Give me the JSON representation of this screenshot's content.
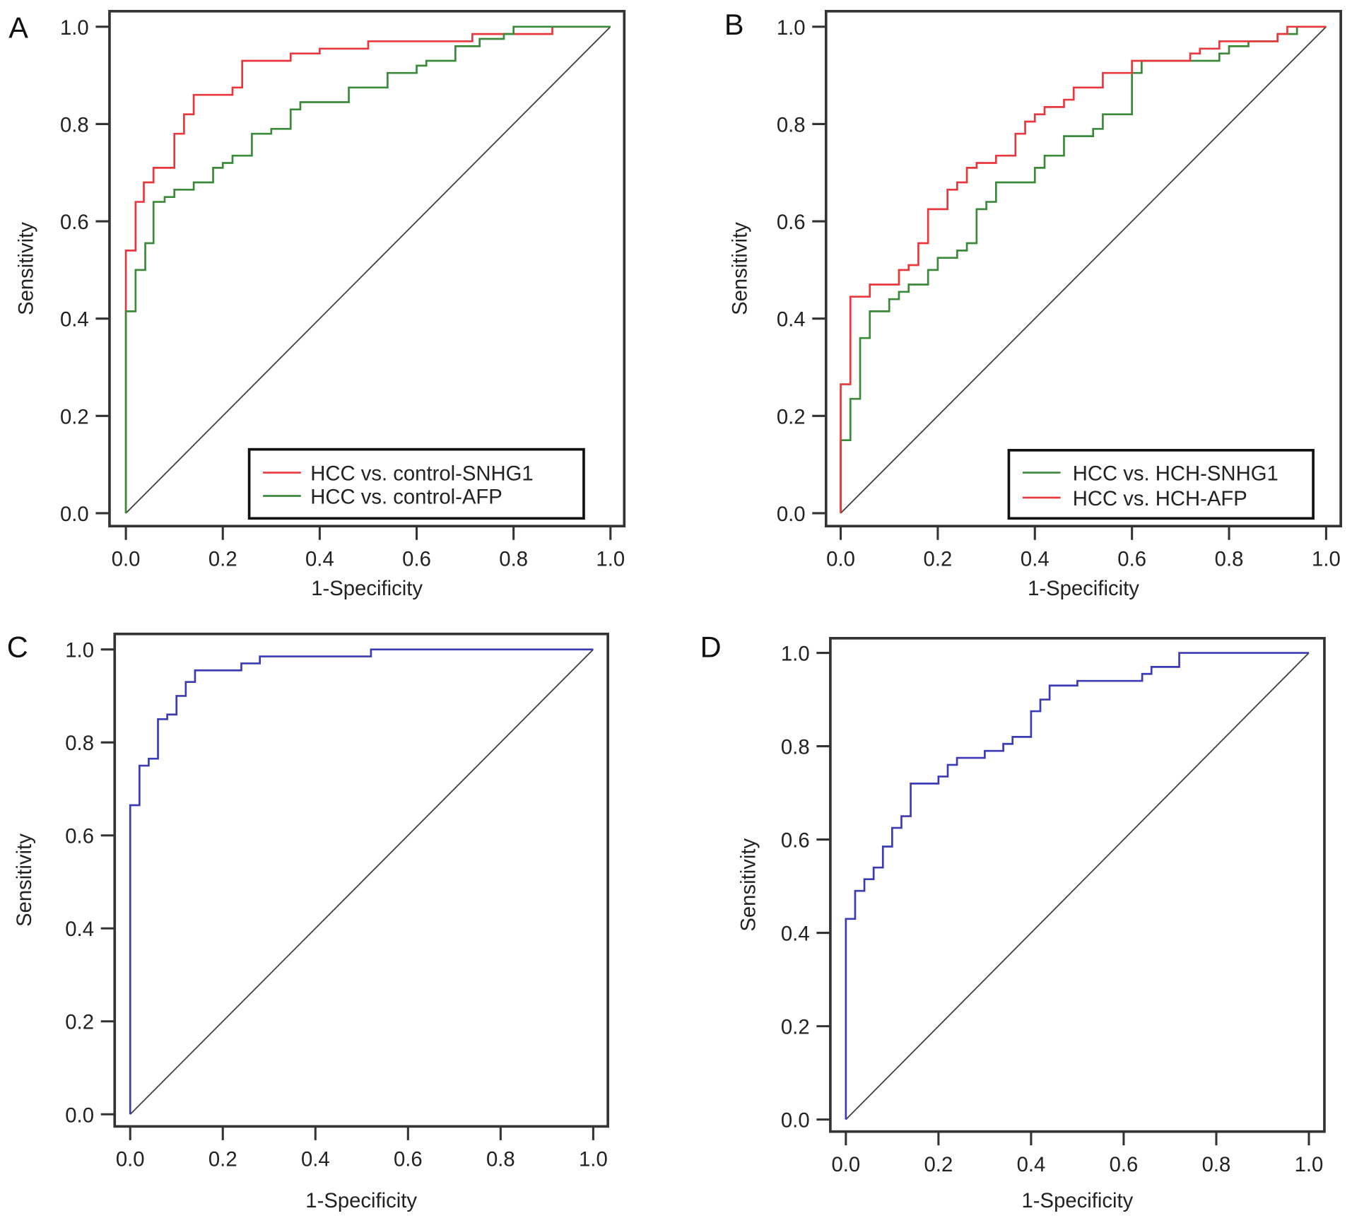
{
  "chart_data": [
    {
      "panel": "A",
      "type": "line",
      "xlabel": "1-Specificity",
      "ylabel": "Sensitivity",
      "xlim": [
        0,
        1
      ],
      "ylim": [
        0,
        1
      ],
      "xticks": [
        "0.0",
        "0.2",
        "0.4",
        "0.6",
        "0.8",
        "1.0"
      ],
      "yticks": [
        "0.0",
        "0.2",
        "0.4",
        "0.6",
        "0.8",
        "1.0"
      ],
      "grid": false,
      "legend_placement": "bottom-right",
      "reference_line": true,
      "series": [
        {
          "name": "HCC vs. control-SNHG1",
          "color": "#e8383d",
          "steps": [
            [
              0,
              0.54
            ],
            [
              0.02,
              0.64
            ],
            [
              0.037,
              0.68
            ],
            [
              0.057,
              0.71
            ],
            [
              0.1,
              0.78
            ],
            [
              0.12,
              0.82
            ],
            [
              0.14,
              0.86
            ],
            [
              0.22,
              0.875
            ],
            [
              0.24,
              0.93
            ],
            [
              0.34,
              0.945
            ],
            [
              0.4,
              0.955
            ],
            [
              0.5,
              0.97
            ],
            [
              0.715,
              0.985
            ],
            [
              0.88,
              1.0
            ]
          ]
        },
        {
          "name": "HCC vs. control-AFP",
          "color": "#3a8a3a",
          "steps": [
            [
              0,
              0.415
            ],
            [
              0.02,
              0.5
            ],
            [
              0.04,
              0.555
            ],
            [
              0.057,
              0.64
            ],
            [
              0.08,
              0.65
            ],
            [
              0.1,
              0.665
            ],
            [
              0.14,
              0.68
            ],
            [
              0.18,
              0.71
            ],
            [
              0.2,
              0.72
            ],
            [
              0.22,
              0.735
            ],
            [
              0.26,
              0.78
            ],
            [
              0.3,
              0.79
            ],
            [
              0.34,
              0.83
            ],
            [
              0.36,
              0.845
            ],
            [
              0.46,
              0.875
            ],
            [
              0.54,
              0.905
            ],
            [
              0.6,
              0.92
            ],
            [
              0.62,
              0.93
            ],
            [
              0.68,
              0.96
            ],
            [
              0.73,
              0.975
            ],
            [
              0.78,
              0.985
            ],
            [
              0.8,
              1.0
            ]
          ]
        }
      ]
    },
    {
      "panel": "B",
      "type": "line",
      "xlabel": "1-Specificity",
      "ylabel": "Sensitivity",
      "xlim": [
        0,
        1
      ],
      "ylim": [
        0,
        1
      ],
      "xticks": [
        "0.0",
        "0.2",
        "0.4",
        "0.6",
        "0.8",
        "1.0"
      ],
      "yticks": [
        "0.0",
        "0.2",
        "0.4",
        "0.6",
        "0.8",
        "1.0"
      ],
      "grid": false,
      "legend_placement": "bottom-right",
      "reference_line": true,
      "series": [
        {
          "name": "HCC vs. HCH-SNHG1",
          "color": "#3a8a3a",
          "steps": [
            [
              0,
              0.15
            ],
            [
              0.02,
              0.235
            ],
            [
              0.04,
              0.36
            ],
            [
              0.06,
              0.415
            ],
            [
              0.1,
              0.44
            ],
            [
              0.12,
              0.455
            ],
            [
              0.14,
              0.47
            ],
            [
              0.18,
              0.5
            ],
            [
              0.2,
              0.525
            ],
            [
              0.24,
              0.54
            ],
            [
              0.26,
              0.555
            ],
            [
              0.28,
              0.625
            ],
            [
              0.3,
              0.64
            ],
            [
              0.32,
              0.68
            ],
            [
              0.4,
              0.71
            ],
            [
              0.42,
              0.735
            ],
            [
              0.46,
              0.775
            ],
            [
              0.52,
              0.79
            ],
            [
              0.54,
              0.82
            ],
            [
              0.6,
              0.905
            ],
            [
              0.62,
              0.93
            ],
            [
              0.78,
              0.945
            ],
            [
              0.8,
              0.96
            ],
            [
              0.84,
              0.97
            ],
            [
              0.9,
              0.985
            ],
            [
              0.94,
              1.0
            ]
          ]
        },
        {
          "name": "HCC vs. HCH-AFP",
          "color": "#e8383d",
          "steps": [
            [
              0,
              0.265
            ],
            [
              0.02,
              0.445
            ],
            [
              0.06,
              0.47
            ],
            [
              0.12,
              0.5
            ],
            [
              0.14,
              0.51
            ],
            [
              0.16,
              0.555
            ],
            [
              0.18,
              0.625
            ],
            [
              0.22,
              0.665
            ],
            [
              0.24,
              0.68
            ],
            [
              0.26,
              0.71
            ],
            [
              0.28,
              0.72
            ],
            [
              0.32,
              0.735
            ],
            [
              0.36,
              0.78
            ],
            [
              0.38,
              0.805
            ],
            [
              0.4,
              0.82
            ],
            [
              0.42,
              0.835
            ],
            [
              0.46,
              0.85
            ],
            [
              0.48,
              0.875
            ],
            [
              0.54,
              0.905
            ],
            [
              0.6,
              0.93
            ],
            [
              0.72,
              0.945
            ],
            [
              0.74,
              0.955
            ],
            [
              0.78,
              0.97
            ],
            [
              0.9,
              0.985
            ],
            [
              0.92,
              1.0
            ]
          ]
        }
      ]
    },
    {
      "panel": "C",
      "type": "line",
      "xlabel": "1-Specificity",
      "ylabel": "Sensitivity",
      "xlim": [
        0,
        1
      ],
      "ylim": [
        0,
        1
      ],
      "xticks": [
        "0.0",
        "0.2",
        "0.4",
        "0.6",
        "0.8",
        "1.0"
      ],
      "yticks": [
        "0.0",
        "0.2",
        "0.4",
        "0.6",
        "0.8",
        "1.0"
      ],
      "grid": false,
      "reference_line": true,
      "series": [
        {
          "color": "#3b3bb5",
          "steps": [
            [
              0,
              0.665
            ],
            [
              0.02,
              0.75
            ],
            [
              0.04,
              0.765
            ],
            [
              0.06,
              0.85
            ],
            [
              0.08,
              0.86
            ],
            [
              0.1,
              0.9
            ],
            [
              0.12,
              0.93
            ],
            [
              0.14,
              0.955
            ],
            [
              0.24,
              0.97
            ],
            [
              0.28,
              0.985
            ],
            [
              0.52,
              1.0
            ]
          ]
        }
      ]
    },
    {
      "panel": "D",
      "type": "line",
      "xlabel": "1-Specificity",
      "ylabel": "Sensitivity",
      "xlim": [
        0,
        1
      ],
      "ylim": [
        0,
        1
      ],
      "xticks": [
        "0.0",
        "0.2",
        "0.4",
        "0.6",
        "0.8",
        "1.0"
      ],
      "yticks": [
        "0.0",
        "0.2",
        "0.4",
        "0.6",
        "0.8",
        "1.0"
      ],
      "grid": false,
      "reference_line": true,
      "series": [
        {
          "color": "#3b3bb5",
          "steps": [
            [
              0,
              0.43
            ],
            [
              0.02,
              0.49
            ],
            [
              0.04,
              0.515
            ],
            [
              0.06,
              0.54
            ],
            [
              0.08,
              0.585
            ],
            [
              0.1,
              0.625
            ],
            [
              0.12,
              0.65
            ],
            [
              0.14,
              0.72
            ],
            [
              0.2,
              0.735
            ],
            [
              0.22,
              0.76
            ],
            [
              0.24,
              0.775
            ],
            [
              0.3,
              0.79
            ],
            [
              0.34,
              0.805
            ],
            [
              0.36,
              0.82
            ],
            [
              0.4,
              0.875
            ],
            [
              0.42,
              0.9
            ],
            [
              0.44,
              0.93
            ],
            [
              0.5,
              0.94
            ],
            [
              0.64,
              0.955
            ],
            [
              0.66,
              0.97
            ],
            [
              0.72,
              1.0
            ]
          ]
        }
      ]
    }
  ]
}
